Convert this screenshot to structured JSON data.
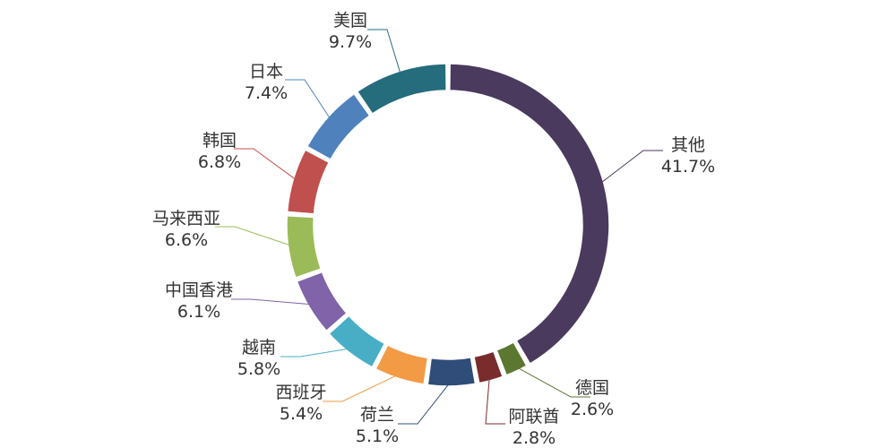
{
  "chart_data": {
    "type": "pie",
    "variant": "donut",
    "title": "",
    "slices": [
      {
        "label": "其他",
        "value": 41.7,
        "display": "41.7%",
        "color": "#4a3a5e"
      },
      {
        "label": "德国",
        "value": 2.6,
        "display": "2.6%",
        "color": "#5c7730"
      },
      {
        "label": "阿联酋",
        "value": 2.8,
        "display": "2.8%",
        "color": "#7a2b2b"
      },
      {
        "label": "荷兰",
        "value": 5.1,
        "display": "5.1%",
        "color": "#2f4d78"
      },
      {
        "label": "西班牙",
        "value": 5.4,
        "display": "5.4%",
        "color": "#f39a45"
      },
      {
        "label": "越南",
        "value": 5.8,
        "display": "5.8%",
        "color": "#48aec6"
      },
      {
        "label": "中国香港",
        "value": 6.1,
        "display": "6.1%",
        "color": "#8063a8"
      },
      {
        "label": "马来西亚",
        "value": 6.6,
        "display": "6.6%",
        "color": "#9bbb59"
      },
      {
        "label": "韩国",
        "value": 6.8,
        "display": "6.8%",
        "color": "#c0504d"
      },
      {
        "label": "日本",
        "value": 7.4,
        "display": "7.4%",
        "color": "#4f81bd"
      },
      {
        "label": "美国",
        "value": 9.7,
        "display": "9.7%",
        "color": "#256c7c"
      }
    ]
  }
}
